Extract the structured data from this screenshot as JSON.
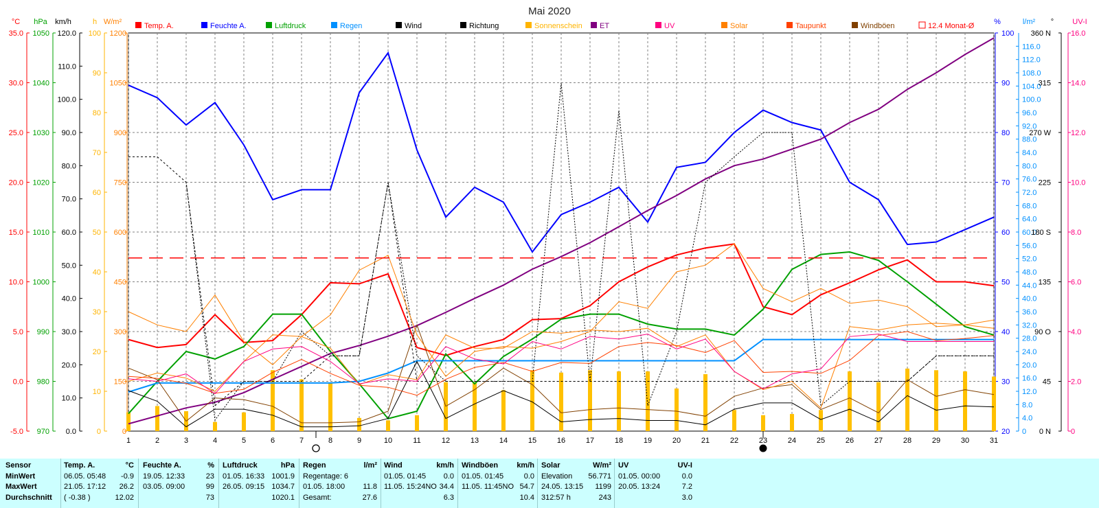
{
  "title": "Mai 2020",
  "axes": {
    "temp": {
      "unit": "°C",
      "color": "#ff0000",
      "min": -5,
      "max": 35,
      "ticks": [
        "35.0",
        "30.0",
        "25.0",
        "20.0",
        "15.0",
        "10.0",
        "5.0",
        "0.0",
        "-5.0"
      ]
    },
    "press": {
      "unit": "hPa",
      "color": "#00a000",
      "min": 970,
      "max": 1050,
      "ticks": [
        "1050",
        "1040",
        "1030",
        "1020",
        "1010",
        "1000",
        "990",
        "980",
        "970"
      ]
    },
    "wind": {
      "unit": "km/h",
      "color": "#000000",
      "min": 0,
      "max": 120,
      "ticks": [
        "120.0",
        "110.0",
        "100.0",
        "90.0",
        "80.0",
        "70.0",
        "60.0",
        "50.0",
        "40.0",
        "30.0",
        "20.0",
        "10.0",
        "0.0"
      ]
    },
    "sun": {
      "unit": "h",
      "color": "#ffb400",
      "min": 0,
      "max": 100,
      "ticks": [
        "100",
        "90",
        "80",
        "70",
        "60",
        "50",
        "40",
        "30",
        "20",
        "10",
        "0"
      ]
    },
    "solar": {
      "unit": "W/m²",
      "color": "#ff8000",
      "min": 0,
      "max": 1200,
      "ticks": [
        "1200",
        "1050",
        "900",
        "750",
        "600",
        "450",
        "300",
        "150",
        "0"
      ]
    },
    "hum": {
      "unit": "%",
      "color": "#0000ff",
      "min": 20,
      "max": 100,
      "ticks": [
        "100",
        "90",
        "80",
        "70",
        "60",
        "50",
        "40",
        "30",
        "20"
      ]
    },
    "rain": {
      "unit": "l/m²",
      "color": "#0090ff",
      "min": 0,
      "max": 120,
      "ticks": [
        "116.0",
        "112.0",
        "108.0",
        "104.0",
        "100.0",
        "96.0",
        "92.0",
        "88.0",
        "84.0",
        "80.0",
        "76.0",
        "72.0",
        "68.0",
        "64.0",
        "60.0",
        "56.0",
        "52.0",
        "48.0",
        "44.0",
        "40.0",
        "36.0",
        "32.0",
        "28.0",
        "24.0",
        "20.0",
        "16.0",
        "12.0",
        "8.0",
        "4.0",
        "0"
      ]
    },
    "dir": {
      "unit": "°",
      "color": "#000000",
      "min": 0,
      "max": 360,
      "ticks": [
        "360 N",
        "315",
        "270 W",
        "225",
        "180 S",
        "135",
        "90 O",
        "45",
        "0 N"
      ]
    },
    "uv": {
      "unit": "UV-I",
      "color": "#ff0080",
      "min": 0,
      "max": 16,
      "ticks": [
        "16.0",
        "14.0",
        "12.0",
        "10.0",
        "8.0",
        "6.0",
        "4.0",
        "2.0",
        "0"
      ]
    }
  },
  "legend": [
    {
      "label": "Temp. A.",
      "color": "#ff0000",
      "style": "filled"
    },
    {
      "label": "Feuchte A.",
      "color": "#0000ff",
      "style": "filled"
    },
    {
      "label": "Luftdruck",
      "color": "#00a000",
      "style": "filled"
    },
    {
      "label": "Regen",
      "color": "#0090ff",
      "style": "filled"
    },
    {
      "label": "Wind",
      "color": "#000000",
      "style": "filled"
    },
    {
      "label": "Richtung",
      "color": "#000000",
      "style": "filled"
    },
    {
      "label": "Sonnenschein",
      "color": "#ffb400",
      "style": "filled"
    },
    {
      "label": "ET",
      "color": "#800080",
      "style": "filled"
    },
    {
      "label": "UV",
      "color": "#ff0080",
      "style": "filled"
    },
    {
      "label": "Solar",
      "color": "#ff8000",
      "style": "filled"
    },
    {
      "label": "Taupunkt",
      "color": "#ff4000",
      "style": "filled"
    },
    {
      "label": "Windböen",
      "color": "#804000",
      "style": "filled"
    },
    {
      "label": "12.4 Monat-Ø",
      "color": "#ff0000",
      "style": "outline"
    }
  ],
  "chart_data": {
    "type": "line",
    "x": [
      1,
      2,
      3,
      4,
      5,
      6,
      7,
      8,
      9,
      10,
      11,
      12,
      13,
      14,
      15,
      16,
      17,
      18,
      19,
      20,
      21,
      22,
      23,
      24,
      25,
      26,
      27,
      28,
      29,
      30,
      31
    ],
    "moon_markers": [
      {
        "day": 7.5,
        "phase": "full moon"
      },
      {
        "day": 23,
        "phase": "new moon"
      }
    ],
    "series": [
      {
        "name": "Temp. A.",
        "axis": "temp",
        "color": "#ff0000",
        "width": 2,
        "values": [
          4.2,
          3.4,
          3.7,
          6.7,
          3.9,
          4.1,
          6.7,
          9.9,
          9.8,
          10.8,
          3.4,
          2.6,
          3.5,
          4.2,
          6.2,
          6.3,
          7.6,
          10.0,
          11.5,
          12.7,
          13.4,
          13.8,
          7.5,
          6.7,
          8.7,
          9.9,
          11.2,
          12.2,
          10.0,
          10.0,
          9.6
        ]
      },
      {
        "name": "Feuchte A.",
        "axis": "hum",
        "color": "#0000ff",
        "width": 2,
        "values": [
          89.5,
          87,
          81.5,
          86,
          77.5,
          66.5,
          68.5,
          68.5,
          88,
          96,
          76.5,
          63,
          69,
          66,
          56,
          63.5,
          66,
          69,
          62,
          73,
          74,
          80,
          84.5,
          82,
          80.5,
          70,
          66.5,
          57.5,
          58,
          60.5,
          63
        ]
      },
      {
        "name": "Luftdruck",
        "axis": "press",
        "color": "#00a000",
        "width": 2,
        "values": [
          973.5,
          980,
          986,
          984.5,
          987,
          993.5,
          993.5,
          986,
          979.5,
          972.5,
          974,
          985.5,
          979.5,
          985,
          988.5,
          992.5,
          993.5,
          993.5,
          991.5,
          990.5,
          990.5,
          989.3,
          994.5,
          1002.5,
          1005.5,
          1006,
          1004.3,
          1000,
          995.5,
          991,
          989.3
        ]
      },
      {
        "name": "ET",
        "axis": "rain",
        "color": "#800080",
        "width": 2,
        "values": [
          2.2,
          4.6,
          7.0,
          8.7,
          11.6,
          15.6,
          19.5,
          23.4,
          25.8,
          28.6,
          31.8,
          35.8,
          40.0,
          44.0,
          48.8,
          52.6,
          56.8,
          61.6,
          66.5,
          71.0,
          76.0,
          80.0,
          82.0,
          85.0,
          88.0,
          93.0,
          97.0,
          103.0,
          108.0,
          113.5,
          118.5
        ]
      },
      {
        "name": "Regen",
        "axis": "rain",
        "color": "#0090ff",
        "width": 2,
        "values": [
          11.8,
          14.5,
          14.5,
          14.5,
          14.5,
          14.5,
          14.5,
          14.5,
          15.0,
          17.5,
          21.2,
          21.2,
          21.2,
          21.2,
          21.2,
          21.2,
          21.2,
          21.2,
          21.2,
          21.2,
          21.2,
          21.2,
          27.6,
          27.6,
          27.6,
          27.6,
          27.6,
          27.6,
          27.6,
          27.6,
          27.6
        ]
      },
      {
        "name": "Wind",
        "axis": "wind",
        "color": "#000000",
        "width": 1,
        "values": [
          12.2,
          9.0,
          1.3,
          6.6,
          6.6,
          4.8,
          1.3,
          1.3,
          1.6,
          3.8,
          21.0,
          3.8,
          8.2,
          12.2,
          8.8,
          2.8,
          3.5,
          3.8,
          3.2,
          3.2,
          1.9,
          6.6,
          8.5,
          8.5,
          3.5,
          6.6,
          2.8,
          10.7,
          6.3,
          7.6,
          7.3
        ]
      },
      {
        "name": "Windböen",
        "axis": "wind",
        "color": "#804000",
        "width": 1,
        "values": [
          19.0,
          15.5,
          3.0,
          10.0,
          9.5,
          7.5,
          2.5,
          2.5,
          2.8,
          6.0,
          32.0,
          7.5,
          12.5,
          19.0,
          14.0,
          5.5,
          6.5,
          7.0,
          6.5,
          6.0,
          4.5,
          10.5,
          13.0,
          14.0,
          6.5,
          10.0,
          5.5,
          15.5,
          10.5,
          12.5,
          11.0
        ]
      },
      {
        "name": "Richtung",
        "axis": "dir",
        "color": "#000000",
        "width": 1,
        "dash": "3,3",
        "values": [
          248,
          248,
          225,
          23,
          45,
          45,
          45,
          68,
          68,
          225,
          45,
          45,
          45,
          45,
          45,
          45,
          45,
          45,
          45,
          45,
          45,
          45,
          45,
          45,
          45,
          45,
          45,
          45,
          68,
          68,
          68
        ]
      },
      {
        "name": "Richtung",
        "axis": "dir",
        "color": "#000000",
        "width": 1,
        "dash": "2,2",
        "values": [
          null,
          null,
          225,
          10,
          45,
          45,
          90,
          68,
          68,
          225,
          68,
          45,
          45,
          45,
          45,
          315,
          45,
          290,
          23,
          90,
          225,
          248,
          270,
          270,
          23,
          45,
          45,
          45,
          68,
          68,
          68
        ]
      },
      {
        "name": "Solar",
        "axis": "solar",
        "color": "#ff8000",
        "width": 1,
        "values": [
          360,
          320,
          300,
          410,
          270,
          200,
          285,
          350,
          485,
          530,
          290,
          165,
          240,
          255,
          250,
          270,
          300,
          390,
          370,
          480,
          500,
          565,
          430,
          390,
          430,
          385,
          395,
          375,
          315,
          320,
          310
        ]
      },
      {
        "name": "Solar",
        "axis": "solar",
        "color": "#ff8000",
        "width": 1,
        "values": [
          150,
          175,
          160,
          120,
          210,
          290,
          285,
          250,
          140,
          170,
          155,
          290,
          250,
          250,
          300,
          295,
          305,
          300,
          310,
          255,
          290,
          180,
          125,
          150,
          70,
          315,
          305,
          320,
          325,
          320,
          335
        ]
      },
      {
        "name": "Taupunkt",
        "axis": "temp",
        "color": "#ff4000",
        "width": 1,
        "values": [
          0.5,
          0.3,
          -0.2,
          -1.2,
          -0.8,
          0.9,
          2.2,
          0.8,
          -0.4,
          -0.6,
          -1.4,
          0.2,
          1.4,
          1.9,
          1.0,
          1.9,
          1.8,
          3.5,
          3.9,
          3.6,
          2.9,
          4.1,
          0.9,
          1.0,
          0.8,
          2.1,
          4.6,
          5.0,
          4.1,
          4.3,
          4.6
        ]
      },
      {
        "name": "UV",
        "axis": "uv",
        "color": "#ff0080",
        "width": 1,
        "values": [
          2.1,
          2.0,
          2.3,
          1.5,
          2.8,
          3.3,
          3.4,
          2.8,
          1.9,
          2.1,
          2.0,
          3.4,
          2.9,
          2.7,
          3.6,
          3.3,
          3.8,
          3.7,
          3.9,
          3.3,
          3.7,
          2.4,
          1.7,
          2.3,
          2.5,
          3.8,
          3.9,
          3.6,
          3.6,
          3.6,
          3.6
        ]
      },
      {
        "name": "Monat-Ø",
        "axis": "temp",
        "color": "#ff0000",
        "width": 1.5,
        "dash": "20,10",
        "values": [
          12.4,
          12.4,
          12.4,
          12.4,
          12.4,
          12.4,
          12.4,
          12.4,
          12.4,
          12.4,
          12.4,
          12.4,
          12.4,
          12.4,
          12.4,
          12.4,
          12.4,
          12.4,
          12.4,
          12.4,
          12.4,
          12.4,
          12.4,
          12.4,
          12.4,
          12.4,
          12.4,
          12.4,
          12.4,
          12.4,
          12.4
        ]
      }
    ],
    "bars": {
      "name": "Sonnenschein",
      "axis": "sun",
      "color": "#ffc000",
      "values": [
        4.7,
        6.3,
        5.0,
        2.3,
        4.7,
        15.3,
        13.0,
        12.0,
        3.3,
        2.7,
        4.0,
        12.3,
        12.3,
        10.3,
        15.3,
        14.7,
        15.3,
        15.0,
        15.0,
        10.7,
        14.3,
        5.3,
        4.0,
        4.3,
        5.3,
        15.0,
        12.3,
        15.7,
        15.3,
        15.0,
        13.7
      ]
    }
  },
  "stats": {
    "temp": {
      "title": "Temp. A.",
      "unit": "°C",
      "min_date": "06.05.  05:48",
      "min_val": "-0.9",
      "max_date": "21.05.  17:12",
      "max_val": "26.2",
      "avg_note": "( -0.38 )",
      "avg_val": "12.02"
    },
    "hum": {
      "title": "Feuchte A.",
      "unit": "%",
      "min_date": "19.05.  12:33",
      "min_val": "23",
      "max_date": "03.05.  09:00",
      "max_val": "99",
      "avg_val": "73"
    },
    "press": {
      "title": "Luftdruck",
      "unit": "hPa",
      "min_date": "01.05.  16:33",
      "min_val": "1001.9",
      "max_date": "26.05.  09:15",
      "max_val": "1034.7",
      "avg_val": "1020.1"
    },
    "rain": {
      "title": "Regen",
      "unit": "l/m²",
      "line1": "Regentage: 6",
      "line2": "01.05.  18:00",
      "line2_val": "11.8",
      "line3": "Gesamt:",
      "line3_val": "27.6"
    },
    "wind": {
      "title": "Wind",
      "unit": "km/h",
      "min_date": "01.05.  01:45",
      "min_val": "0.0",
      "max_date": "11.05.  15:24NO",
      "max_val": "34.4",
      "avg_val": "6.3"
    },
    "gust": {
      "title": "Windböen",
      "unit": "km/h",
      "min_date": "01.05.  01:45",
      "min_val": "0.0",
      "max_date": "11.05.  11:45NO",
      "max_val": "54.7",
      "avg_val": "10.4"
    },
    "solar": {
      "title": "Solar",
      "unit": "W/m²",
      "l1": "Elevation",
      "l1v": "56.771",
      "l2": "24.05.  13:15",
      "l2v": "1199",
      "l3": "312:57 h",
      "l3v": "243"
    },
    "uv": {
      "title": "UV",
      "unit": "UV-I",
      "min_date": "01.05.  00:00",
      "min_val": "0.0",
      "max_date": "20.05.  13:24",
      "max_val": "7.2",
      "avg_val": "3.0"
    },
    "row_labels": {
      "sensor": "Sensor",
      "min": "MinWert",
      "max": "MaxWert",
      "avg": "Durchschnitt"
    }
  }
}
